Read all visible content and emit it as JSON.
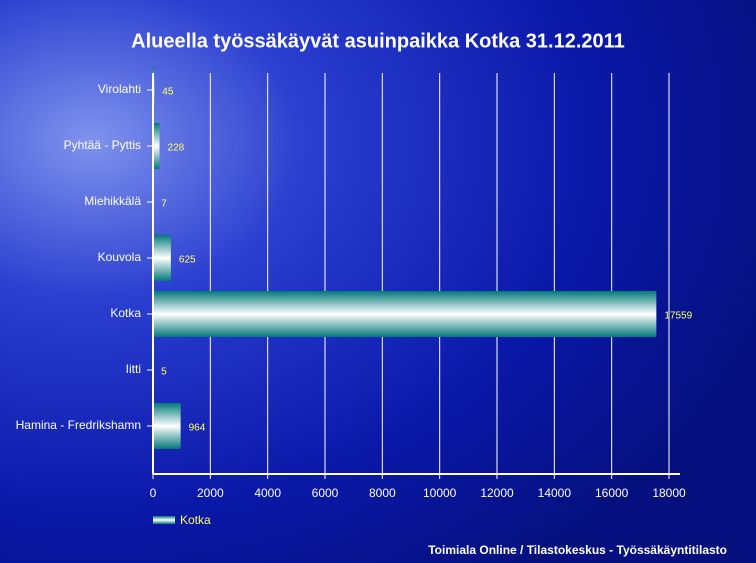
{
  "chart_data": {
    "type": "bar",
    "title": "Alueella työssäkäyvät asuinpaikka Kotka 31.12.2011",
    "categories": [
      "Virolahti",
      "Pyhtää - Pyttis",
      "Miehikkälä",
      "Kouvola",
      "Kotka",
      "Iitti",
      "Hamina - Fredrikshamn"
    ],
    "series": [
      {
        "name": "Kotka",
        "color": "#007a78",
        "values": [
          45,
          228,
          7,
          625,
          17559,
          5,
          964
        ]
      }
    ],
    "xlim": [
      0,
      18000
    ],
    "xticks": [
      0,
      2000,
      4000,
      6000,
      8000,
      10000,
      12000,
      14000,
      16000,
      18000
    ],
    "grid": true,
    "source": "Toimiala Online / Tilastokeskus - Työssäkäyntitilasto"
  }
}
